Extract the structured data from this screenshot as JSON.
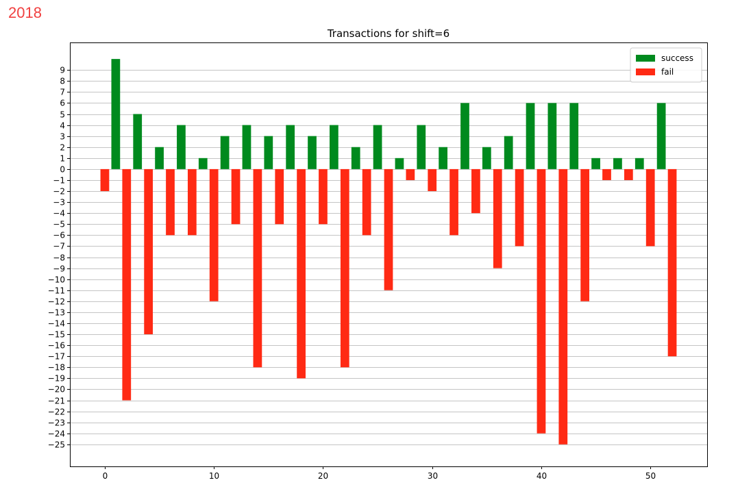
{
  "header": {
    "year": "2018"
  },
  "chart_data": {
    "type": "bar",
    "title": "Transactions for shift=6",
    "xlabel": "",
    "ylabel": "",
    "xlim": [
      -3.2,
      55.2
    ],
    "ylim": [
      -27,
      11.5
    ],
    "x_ticks": [
      0,
      10,
      20,
      30,
      40,
      50
    ],
    "y_ticks": [
      9,
      8,
      7,
      6,
      5,
      4,
      3,
      2,
      1,
      0,
      -1,
      -2,
      -3,
      -4,
      -5,
      -6,
      -7,
      -8,
      -9,
      -10,
      -11,
      -12,
      -13,
      -14,
      -15,
      -16,
      -17,
      -18,
      -19,
      -20,
      -21,
      -22,
      -23,
      -24,
      -25
    ],
    "grid": "horizontal",
    "legend_position": "top-right",
    "bar_width": 0.8,
    "series": [
      {
        "name": "success",
        "color": "#008a1e",
        "x": [
          1,
          3,
          5,
          7,
          9,
          11,
          13,
          15,
          17,
          19,
          21,
          23,
          25,
          27,
          29,
          31,
          33,
          35,
          37,
          39,
          41,
          43,
          45,
          47,
          49,
          51
        ],
        "values": [
          10,
          5,
          2,
          4,
          1,
          3,
          4,
          3,
          4,
          3,
          4,
          2,
          4,
          1,
          4,
          2,
          6,
          2,
          3,
          6,
          6,
          6,
          1,
          1,
          1,
          6
        ]
      },
      {
        "name": "fail",
        "color": "#ff2a14",
        "x": [
          0,
          2,
          4,
          6,
          8,
          10,
          12,
          14,
          16,
          18,
          20,
          22,
          24,
          26,
          28,
          30,
          32,
          34,
          36,
          38,
          40,
          42,
          44,
          46,
          48,
          50,
          52
        ],
        "values": [
          -2,
          -21,
          -15,
          -6,
          -6,
          -12,
          -5,
          -18,
          -5,
          -19,
          -5,
          -18,
          -6,
          -11,
          -1,
          -2,
          -6,
          -4,
          -9,
          -7,
          -24,
          -25,
          -12,
          -1,
          -1,
          -7,
          -17
        ]
      }
    ]
  }
}
